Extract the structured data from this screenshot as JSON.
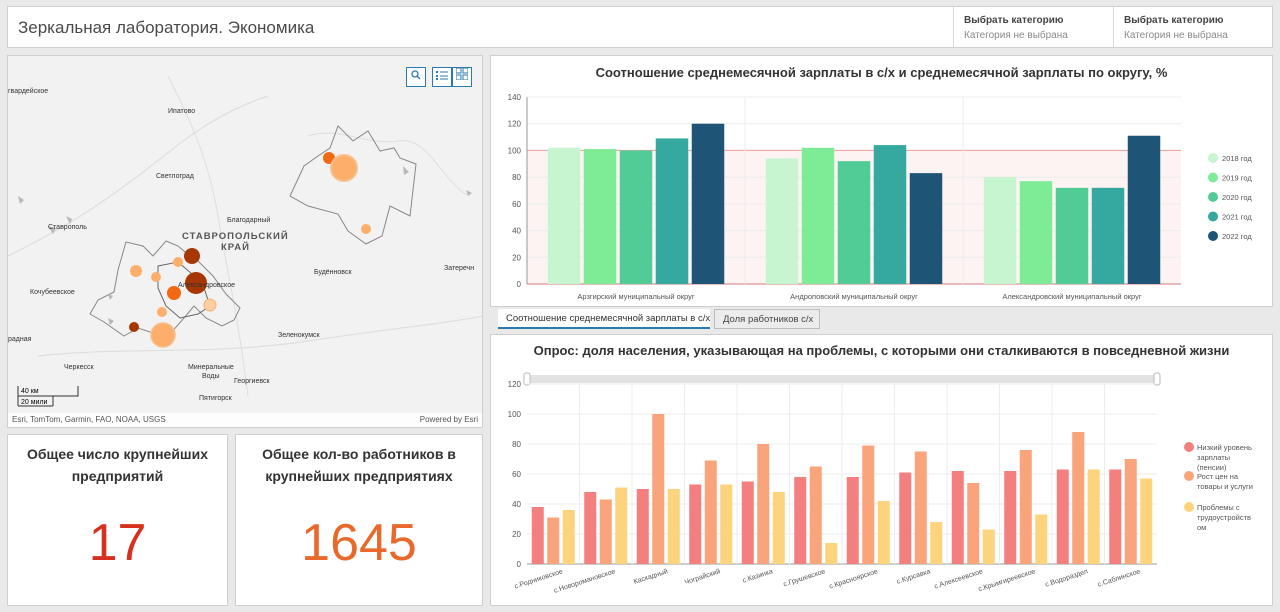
{
  "app": {
    "title": "Зеркальная лаборатория. Экономика"
  },
  "selectors": [
    {
      "label": "Выбрать категорию",
      "value": "Категория не выбрана"
    },
    {
      "label": "Выбрать категорию",
      "value": "Категория не выбрана"
    }
  ],
  "map": {
    "labels": [
      {
        "text": "гвардейское",
        "bold": false
      },
      {
        "text": "Ипатово",
        "bold": false
      },
      {
        "text": "Светлоград",
        "bold": false
      },
      {
        "text": "Благодарный",
        "bold": false
      },
      {
        "text": "Ставрополь",
        "bold": false
      },
      {
        "text": "СТАВРОПОЛЬСКИЙ",
        "bold": true
      },
      {
        "text": "КРАЙ",
        "bold": true
      },
      {
        "text": "Кочубеевское",
        "bold": false
      },
      {
        "text": "Александровское",
        "bold": false
      },
      {
        "text": "Будённовск",
        "bold": false
      },
      {
        "text": "Затеречн",
        "bold": false
      },
      {
        "text": "Зеленокумск",
        "bold": false
      },
      {
        "text": "радная",
        "bold": false
      },
      {
        "text": "Черкесск",
        "bold": false
      },
      {
        "text": "Минеральные",
        "bold": false
      },
      {
        "text": "Воды",
        "bold": false
      },
      {
        "text": "Георгиевск",
        "bold": false
      },
      {
        "text": "Пятигорск",
        "bold": false
      }
    ],
    "scale_km": "40 км",
    "scale_mi": "20 мили",
    "attribution": "Esri, TomTom, Garmin, FAO, NOAA, USGS",
    "powered_by": "Powered by Esri",
    "colors": {
      "dark": "#a63603",
      "mid": "#f16913",
      "light": "#fdae6b",
      "pale": "#fdd0a2"
    }
  },
  "kpis": [
    {
      "title": "Общее число крупнейших предприятий",
      "value": "17",
      "color": "#d7301f"
    },
    {
      "title": "Общее кол-во работников в крупнейших предприятиях",
      "value": "1645",
      "color": "#e8692b"
    }
  ],
  "tabs": [
    {
      "label": "Соотношение среднемесячной зарплаты в с/х",
      "active": true
    },
    {
      "label": "Доля работников с/х",
      "active": false
    }
  ],
  "chart_data": [
    {
      "type": "bar",
      "title": "Соотношение среднемесячной зарплаты в с/х и среднемесячной зарплаты по округу, %",
      "categories": [
        "Арзгирский муниципальный округ",
        "Андроповский муниципальный округ",
        "Александровский муниципальный округ"
      ],
      "series": [
        {
          "name": "2018 год",
          "color": "#c7f5cf",
          "values": [
            102,
            94,
            80
          ]
        },
        {
          "name": "2019 год",
          "color": "#7eeb96",
          "values": [
            101,
            102,
            77
          ]
        },
        {
          "name": "2020 год",
          "color": "#52cc96",
          "values": [
            100,
            92,
            72
          ]
        },
        {
          "name": "2021 год",
          "color": "#35a8a0",
          "values": [
            109,
            104,
            72
          ]
        },
        {
          "name": "2022 год",
          "color": "#1e5475",
          "values": [
            120,
            83,
            111
          ]
        }
      ],
      "ylim": [
        0,
        140
      ],
      "yticks": [
        0,
        20,
        40,
        60,
        80,
        100,
        120,
        140
      ],
      "reference_line": 100,
      "legend": "right"
    },
    {
      "type": "bar",
      "title": "Опрос: доля населения, указывающая на проблемы, с которыми они сталкиваются в повседневной жизни",
      "categories": [
        "с.Родниковское",
        "с.Новоромановское",
        "Каскадный",
        "Чограйский",
        "с.Казинка",
        "с.Грушевское",
        "с.Красноярское",
        "с.Курсавка",
        "с.Алексеевское",
        "с.Крымгиреевское",
        "с.Водораздел",
        "с.Саблинское"
      ],
      "series": [
        {
          "name": "Низкий уровень зарплаты (пенсии)",
          "color": "#f47f7f",
          "values": [
            38,
            48,
            50,
            53,
            55,
            58,
            58,
            61,
            62,
            62,
            63,
            63
          ]
        },
        {
          "name": "Рост цен на товары и услуги",
          "color": "#f9a47a",
          "values": [
            31,
            43,
            100,
            69,
            80,
            65,
            79,
            75,
            54,
            76,
            88,
            70
          ]
        },
        {
          "name": "Проблемы с трудоустройством",
          "color": "#fdd47e",
          "values": [
            36,
            51,
            50,
            53,
            48,
            14,
            42,
            28,
            23,
            33,
            63,
            57
          ]
        }
      ],
      "ylim": [
        0,
        120
      ],
      "yticks": [
        0,
        20,
        40,
        60,
        80,
        100,
        120
      ],
      "legend": "right"
    }
  ],
  "legend2_lines": [
    [
      "Низкий уровень",
      "зарплаты",
      "(пенсии)"
    ],
    [
      "Рост цен на",
      "товары и услуги"
    ],
    [
      "Проблемы с",
      "трудоустройств",
      "ом"
    ]
  ]
}
